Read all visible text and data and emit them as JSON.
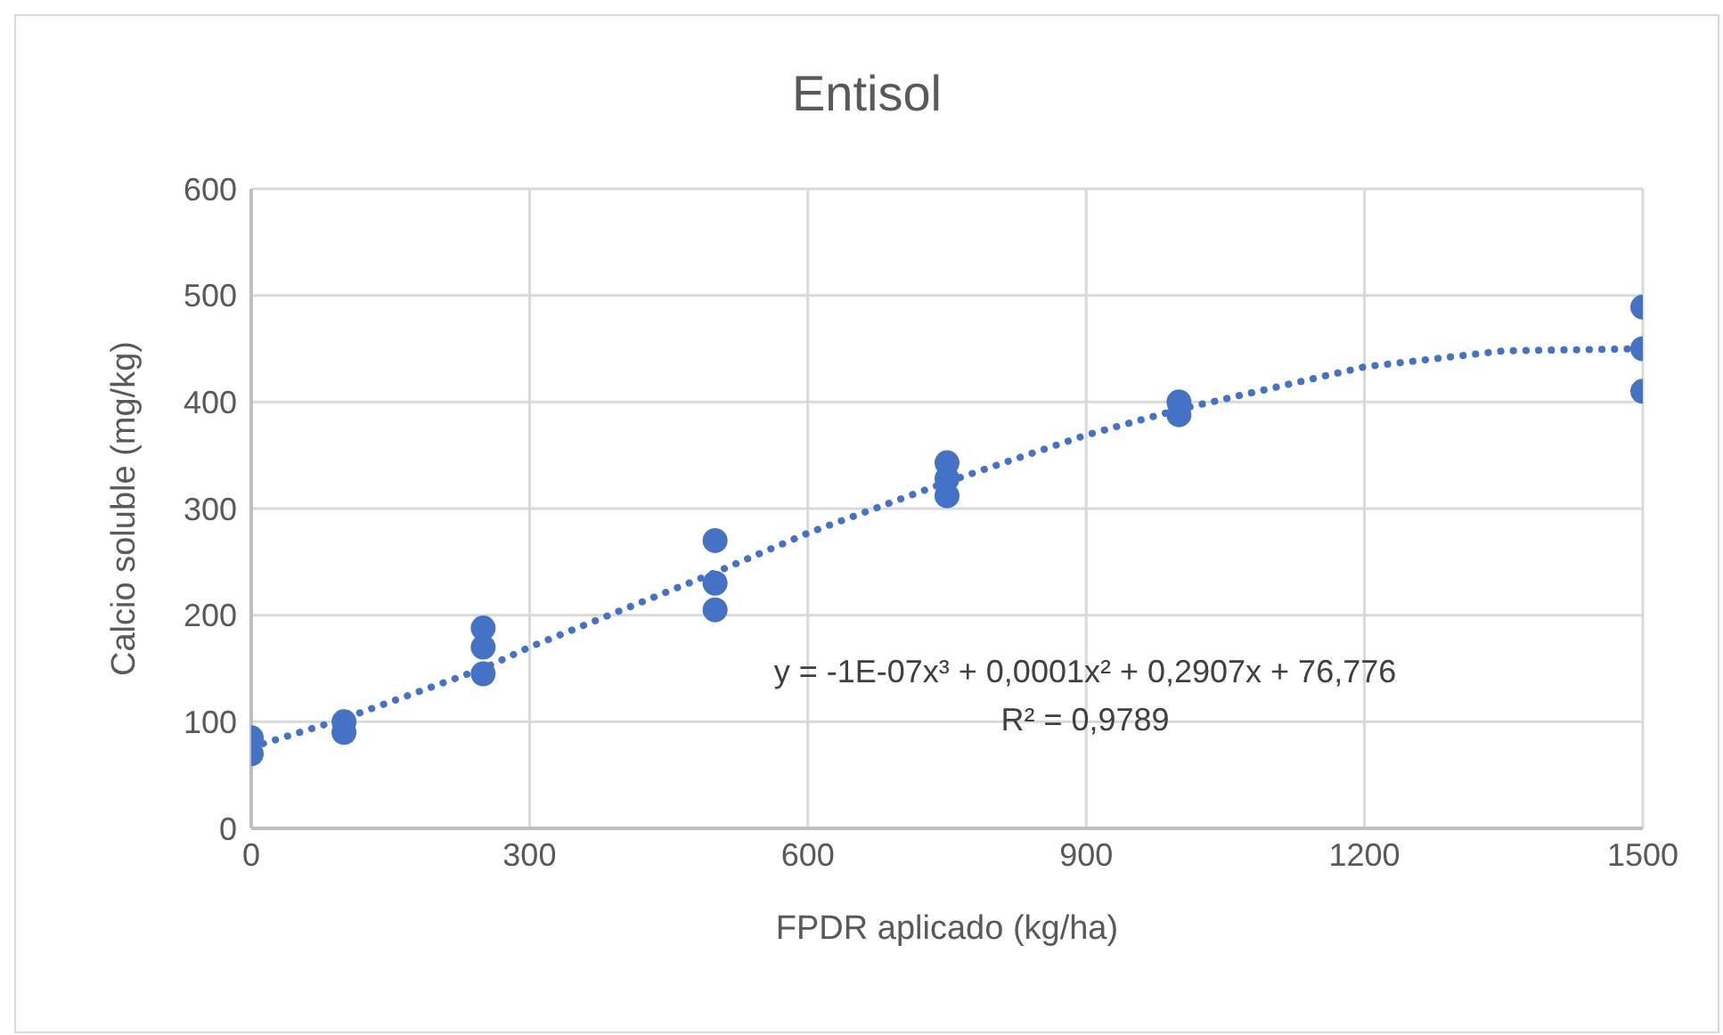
{
  "chart_data": {
    "type": "scatter",
    "title": "Entisol",
    "xlabel": "FPDR aplicado (kg/ha)",
    "ylabel": "Calcio soluble (mg/kg)",
    "xlim": [
      0,
      1500
    ],
    "xticks": [
      0,
      300,
      600,
      900,
      1200,
      1500
    ],
    "ylim": [
      0,
      600
    ],
    "yticks": [
      0,
      100,
      200,
      300,
      400,
      500,
      600
    ],
    "grid": true,
    "legend": false,
    "series": [
      {
        "color": "#4472c4",
        "marker": "circle",
        "x": [
          0,
          0,
          100,
          100,
          250,
          250,
          250,
          500,
          500,
          500,
          750,
          750,
          750,
          1000,
          1000,
          1500,
          1500,
          1500
        ],
        "values": [
          85,
          70,
          100,
          90,
          188,
          170,
          145,
          270,
          230,
          205,
          343,
          328,
          312,
          400,
          388,
          489,
          450,
          410
        ]
      },
      {
        "type": "line",
        "color": "#4472c4",
        "marker": "none",
        "line_style": "dotted",
        "x": [
          0,
          100,
          250,
          300,
          500,
          600,
          750,
          900,
          1000,
          1200,
          1350,
          1500
        ],
        "values": [
          76,
          103,
          150,
          170,
          240,
          277,
          325,
          369,
          393,
          433,
          448,
          450
        ]
      }
    ],
    "annotations": [
      "y = -1E-07x³ + 0,0001x² + 0,2907x + 76,776",
      "R² = 0,9789"
    ]
  }
}
